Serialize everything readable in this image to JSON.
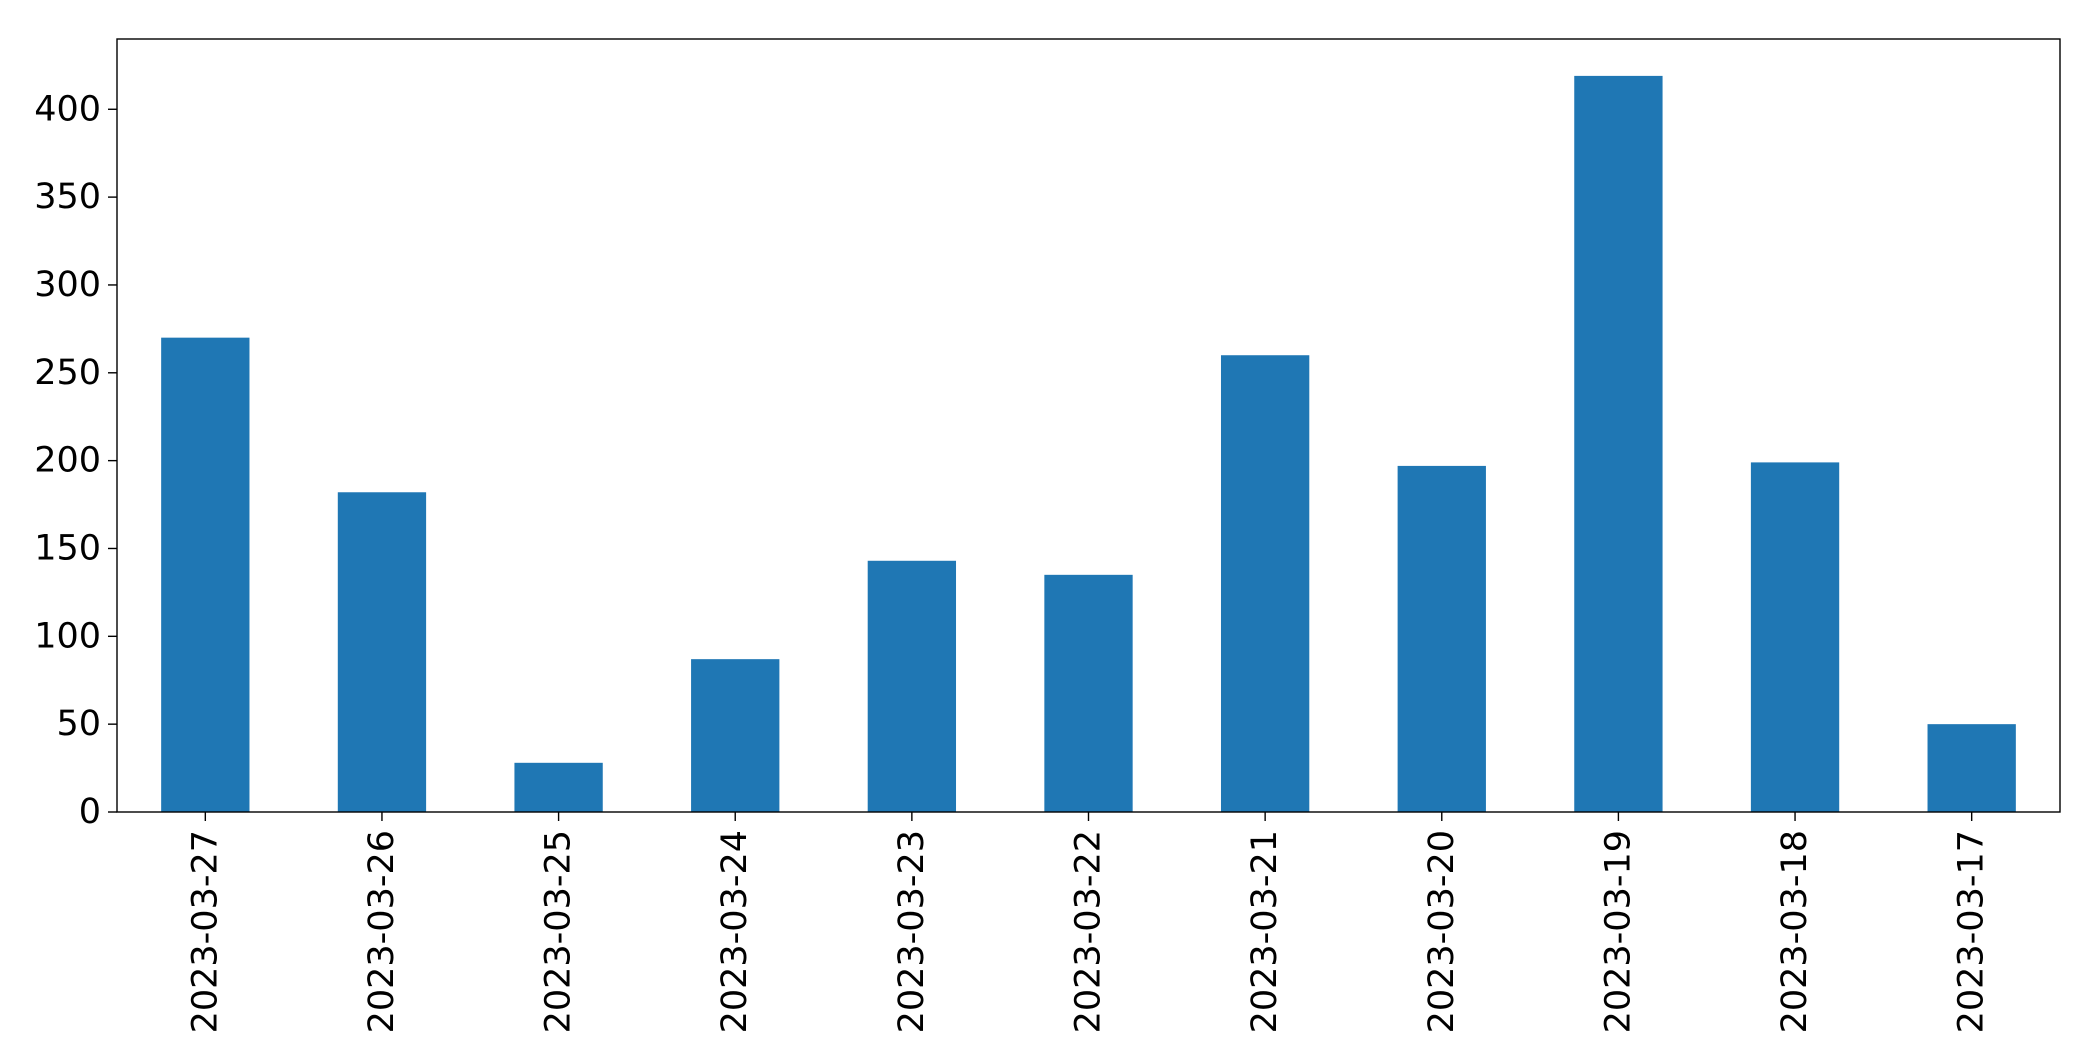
{
  "chart_data": {
    "type": "bar",
    "title": "",
    "xlabel": "",
    "ylabel": "",
    "categories": [
      "2023-03-27",
      "2023-03-26",
      "2023-03-25",
      "2023-03-24",
      "2023-03-23",
      "2023-03-22",
      "2023-03-21",
      "2023-03-20",
      "2023-03-19",
      "2023-03-18",
      "2023-03-17"
    ],
    "values": [
      270,
      182,
      28,
      87,
      143,
      135,
      260,
      197,
      419,
      199,
      50
    ],
    "ylim": [
      0,
      440
    ],
    "yticks": [
      0,
      50,
      100,
      150,
      200,
      250,
      300,
      350,
      400
    ],
    "x_tick_rotation": "vertical",
    "bar_color": "#1f77b4",
    "grid": false,
    "legend": "none"
  }
}
